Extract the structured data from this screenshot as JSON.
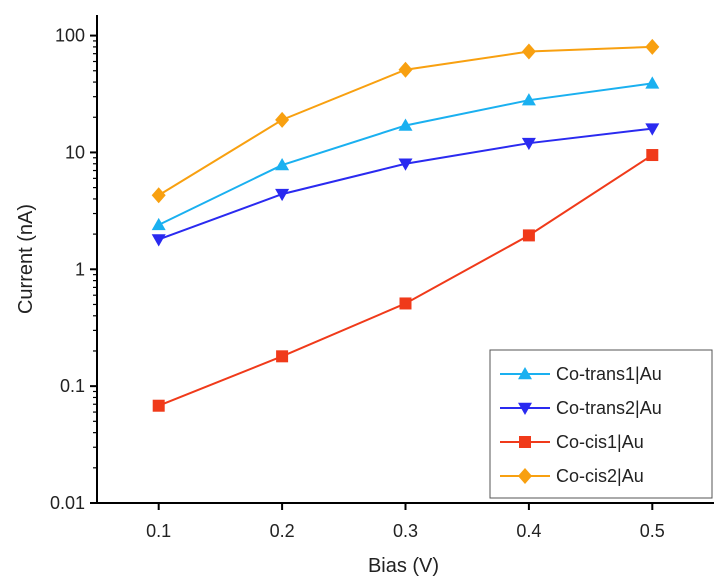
{
  "chart_data": {
    "type": "line",
    "title": "",
    "xlabel": "Bias (V)",
    "ylabel": "Current (nA)",
    "x": [
      0.1,
      0.2,
      0.3,
      0.4,
      0.5
    ],
    "x_tick_labels": [
      "0.1",
      "0.2",
      "0.3",
      "0.4",
      "0.5"
    ],
    "xlim": [
      0.05,
      0.55
    ],
    "y_scale": "log",
    "ylim": [
      0.01,
      150
    ],
    "y_ticks": [
      0.01,
      0.1,
      1,
      10,
      100
    ],
    "y_tick_labels": [
      "0.01",
      "0.1",
      "1",
      "10",
      "100"
    ],
    "grid": false,
    "legend_position": "bottom-right",
    "series": [
      {
        "name": "Co-trans1|Au",
        "color": "#1ab0f0",
        "marker": "triangle-up",
        "values": [
          2.4,
          7.8,
          17,
          28,
          39
        ]
      },
      {
        "name": "Co-trans2|Au",
        "color": "#2a2af0",
        "marker": "triangle-down",
        "values": [
          1.8,
          4.4,
          8.0,
          12,
          16
        ]
      },
      {
        "name": "Co-cis1|Au",
        "color": "#f03a1a",
        "marker": "square",
        "values": [
          0.068,
          0.18,
          0.51,
          1.95,
          9.5
        ]
      },
      {
        "name": "Co-cis2|Au",
        "color": "#f8a010",
        "marker": "diamond",
        "values": [
          4.3,
          19,
          51,
          73,
          80
        ]
      }
    ]
  }
}
